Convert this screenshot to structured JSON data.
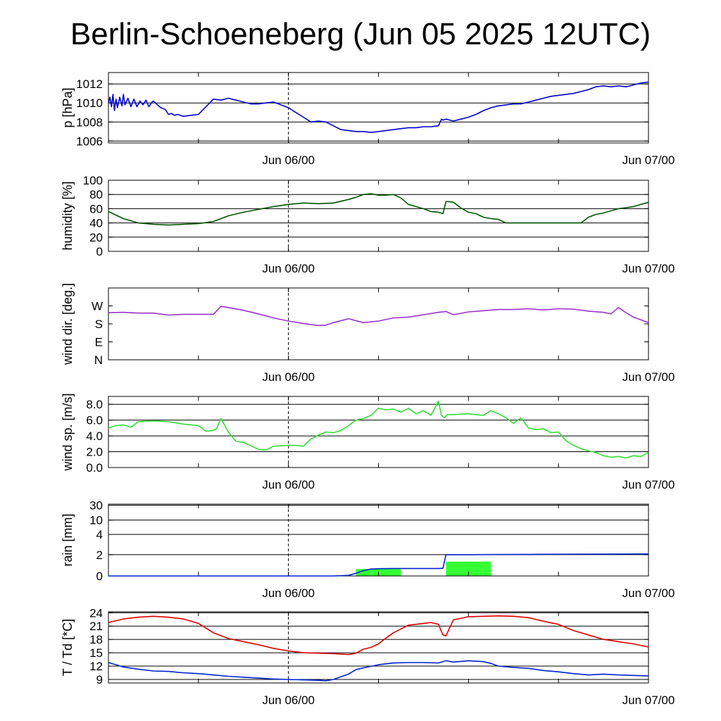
{
  "title": "Berlin-Schoeneberg (Jun 05 2025 12UTC)",
  "x_axis": {
    "range_hours": [
      0,
      36
    ],
    "marker_hour": 12,
    "major_tick_every_hours": 6,
    "tick_labels": [
      {
        "hour": 12,
        "text": "Jun 06/00"
      },
      {
        "hour": 36,
        "text": "Jun 07/00"
      }
    ]
  },
  "colors": {
    "pressure": "#0000cc",
    "humidity": "#005500",
    "wind_dir": "#9933cc",
    "wind_speed": "#33dd33",
    "rain_line": "#0022cc",
    "rain_bar": "#33ff33",
    "temperature": "#dd0000",
    "dewpoint": "#0022cc"
  },
  "chart_data": [
    {
      "type": "line",
      "ylabel": "p [hPa]",
      "ylim": [
        1005.8,
        1013.2
      ],
      "yticks": [
        1006,
        1008,
        1010,
        1012
      ],
      "ytick_labels": [
        "1006",
        "1008",
        "1010",
        "1012"
      ],
      "grid": "horizontal",
      "series": [
        {
          "color_key": "pressure",
          "x": [
            0,
            0.1,
            0.2,
            0.3,
            0.4,
            0.5,
            0.6,
            0.75,
            0.9,
            1.0,
            1.1,
            1.3,
            1.5,
            1.7,
            1.9,
            2.1,
            2.3,
            2.5,
            2.7,
            2.9,
            3.0,
            3.2,
            3.5,
            3.8,
            4.0,
            4.2,
            4.4,
            4.6,
            5.0,
            5.5,
            6.0,
            6.5,
            7.0,
            7.5,
            8.0,
            8.5,
            9.0,
            9.5,
            10.0,
            10.5,
            11.0,
            11.5,
            12.0,
            12.5,
            13.0,
            13.5,
            14.0,
            14.5,
            15.0,
            15.5,
            16.0,
            16.5,
            17.0,
            17.5,
            18.0,
            18.5,
            19.0,
            19.5,
            20.0,
            20.5,
            21.0,
            21.5,
            22.0,
            22.2,
            22.3,
            22.5,
            23.0,
            23.5,
            24.0,
            24.5,
            25.0,
            25.5,
            26.0,
            26.5,
            27.0,
            27.5,
            28.0,
            28.5,
            29.0,
            29.5,
            30.0,
            30.5,
            31.0,
            31.5,
            32.0,
            32.5,
            33.0,
            33.5,
            34.0,
            34.5,
            35.0,
            35.5,
            36.0
          ],
          "y": [
            1010.0,
            1010.6,
            1009.6,
            1010.9,
            1009.2,
            1010.4,
            1009.5,
            1010.6,
            1009.7,
            1010.9,
            1009.8,
            1010.5,
            1009.6,
            1010.4,
            1009.6,
            1010.2,
            1009.8,
            1010.3,
            1009.6,
            1010.1,
            1010.2,
            1009.9,
            1009.5,
            1009.3,
            1008.8,
            1008.9,
            1008.7,
            1008.8,
            1008.6,
            1008.7,
            1008.8,
            1009.6,
            1010.4,
            1010.3,
            1010.5,
            1010.3,
            1010.1,
            1009.9,
            1009.9,
            1010.0,
            1010.1,
            1009.8,
            1009.5,
            1009.0,
            1008.5,
            1008.0,
            1008.1,
            1008.0,
            1007.6,
            1007.2,
            1007.1,
            1007.0,
            1007.0,
            1006.9,
            1007.0,
            1007.1,
            1007.2,
            1007.3,
            1007.4,
            1007.4,
            1007.5,
            1007.5,
            1007.6,
            1008.3,
            1008.2,
            1008.3,
            1008.1,
            1008.3,
            1008.5,
            1008.8,
            1009.2,
            1009.5,
            1009.7,
            1009.8,
            1009.9,
            1009.9,
            1010.1,
            1010.3,
            1010.5,
            1010.7,
            1010.8,
            1010.9,
            1011.0,
            1011.2,
            1011.4,
            1011.7,
            1011.8,
            1011.7,
            1011.8,
            1011.7,
            1011.9,
            1012.1,
            1012.2
          ]
        }
      ]
    },
    {
      "type": "line",
      "ylabel": "humidity [%]",
      "ylim": [
        0,
        100
      ],
      "yticks": [
        0,
        20,
        40,
        60,
        80,
        100
      ],
      "ytick_labels": [
        "0",
        "20",
        "40",
        "60",
        "80",
        "100"
      ],
      "grid": "horizontal",
      "series": [
        {
          "color_key": "humidity",
          "x": [
            0,
            1,
            2,
            3,
            4,
            5,
            6,
            7,
            8,
            9,
            10,
            11,
            12,
            13,
            14,
            15,
            16,
            16.5,
            17,
            17.5,
            18,
            18.5,
            19,
            19.5,
            20,
            20.5,
            21,
            21.5,
            22,
            22.3,
            22.5,
            22.7,
            23,
            23.5,
            24,
            24.5,
            25,
            25.5,
            26,
            26.5,
            27,
            27.5,
            28,
            28.5,
            29,
            29.5,
            30,
            30.5,
            31,
            31.5,
            32,
            32.5,
            33,
            33.5,
            34,
            35,
            36
          ],
          "y": [
            56,
            46,
            40,
            38,
            37,
            38,
            39,
            42,
            50,
            55,
            59,
            63,
            66,
            68,
            67,
            68,
            73,
            76,
            80,
            81,
            79,
            79,
            80,
            75,
            66,
            63,
            60,
            56,
            55,
            53,
            70,
            70,
            69,
            61,
            55,
            53,
            48,
            46,
            45,
            40,
            40,
            40,
            40,
            40,
            40,
            40,
            40,
            40,
            40,
            40,
            48,
            52,
            54,
            57,
            60,
            63,
            69
          ]
        }
      ]
    },
    {
      "type": "line",
      "ylabel": "wind dir. [deg.]",
      "ylim": [
        0,
        360
      ],
      "yticks": [
        0,
        90,
        180,
        270
      ],
      "ytick_labels": [
        "N",
        "E",
        "S",
        "W"
      ],
      "grid": "none",
      "series": [
        {
          "color_key": "wind_dir",
          "x": [
            0,
            1,
            2,
            3,
            4,
            5,
            6,
            7,
            7.5,
            8,
            9,
            10,
            11,
            12,
            13,
            14,
            14.5,
            15,
            16,
            17,
            18,
            19,
            20,
            21,
            22,
            22.5,
            23,
            24,
            25,
            26,
            27,
            28,
            29,
            30,
            31,
            32,
            33,
            33.5,
            34,
            34.5,
            35,
            35.5,
            36
          ],
          "y": [
            236,
            238,
            234,
            234,
            224,
            228,
            228,
            228,
            268,
            262,
            248,
            230,
            210,
            194,
            182,
            172,
            174,
            186,
            206,
            186,
            194,
            210,
            214,
            226,
            238,
            242,
            226,
            240,
            246,
            252,
            252,
            256,
            250,
            256,
            254,
            244,
            238,
            230,
            262,
            236,
            214,
            200,
            186
          ]
        }
      ]
    },
    {
      "type": "line",
      "ylabel": "wind sp. [m/s]",
      "ylim": [
        0,
        9
      ],
      "yticks": [
        0,
        2,
        4,
        6,
        8
      ],
      "ytick_labels": [
        "0.0",
        "2.0",
        "4.0",
        "6.0",
        "8.0"
      ],
      "grid": "horizontal",
      "series": [
        {
          "color_key": "wind_speed",
          "x": [
            0,
            0.5,
            1,
            1.5,
            2,
            3,
            4,
            5,
            6,
            6.5,
            7,
            7.2,
            7.5,
            8,
            8.5,
            9,
            10,
            10.5,
            11,
            12,
            12.5,
            13,
            13.5,
            14,
            14.5,
            15,
            15.5,
            16,
            16.5,
            17,
            17.5,
            18,
            18.5,
            19,
            19.5,
            20,
            20.5,
            21,
            21.5,
            22,
            22.2,
            22.4,
            22.6,
            23,
            24,
            25,
            25.5,
            26,
            26.5,
            27,
            27.5,
            28,
            28.5,
            29,
            29.5,
            30,
            30.5,
            31,
            31.5,
            32,
            32.5,
            33,
            33.5,
            34,
            34.5,
            35,
            35.5,
            36
          ],
          "y": [
            5.0,
            5.3,
            5.4,
            5.1,
            5.8,
            5.9,
            5.8,
            5.5,
            5.3,
            4.6,
            4.7,
            4.9,
            6.2,
            4.5,
            3.3,
            3.2,
            2.3,
            2.2,
            2.7,
            2.8,
            2.8,
            2.7,
            3.6,
            4.1,
            4.5,
            4.4,
            4.7,
            5.3,
            6.0,
            6.2,
            6.6,
            7.5,
            7.3,
            7.4,
            7.0,
            7.5,
            6.8,
            7.2,
            6.6,
            8.4,
            6.6,
            6.3,
            6.7,
            6.7,
            6.8,
            6.6,
            7.2,
            6.8,
            6.3,
            5.6,
            6.3,
            5.0,
            4.8,
            4.9,
            4.4,
            4.5,
            3.4,
            2.8,
            2.4,
            2.1,
            1.9,
            1.5,
            1.3,
            1.4,
            1.2,
            1.5,
            1.4,
            1.9
          ]
        }
      ]
    },
    {
      "type": "area",
      "ylabel": "rain [mm]",
      "ylim": [
        0,
        30
      ],
      "scale": "nonlinear",
      "yticks": [
        0,
        2,
        4,
        10,
        30
      ],
      "ytick_labels": [
        "0",
        "2",
        "4",
        "10",
        "30"
      ],
      "grid": "horizontal",
      "bars": [
        {
          "start": 16.5,
          "end": 19.5,
          "value": 0.65
        },
        {
          "start": 22.5,
          "end": 25.5,
          "value": 1.35
        }
      ],
      "series": [
        {
          "name": "accumulated",
          "color_key": "rain_line",
          "x": [
            0,
            15,
            16,
            16.5,
            17,
            17.5,
            18,
            19,
            20,
            21,
            22,
            22.3,
            22.5,
            23,
            24,
            26,
            28,
            30,
            32,
            34,
            36
          ],
          "y": [
            0,
            0,
            0.05,
            0.25,
            0.5,
            0.65,
            0.68,
            0.7,
            0.7,
            0.7,
            0.7,
            0.72,
            2.0,
            2.0,
            2.0,
            2.02,
            2.03,
            2.04,
            2.05,
            2.06,
            2.07
          ]
        }
      ]
    },
    {
      "type": "line",
      "ylabel": "T / Td [*C]",
      "ylim": [
        8.2,
        24.2
      ],
      "yticks": [
        9,
        12,
        15,
        18,
        21,
        24
      ],
      "ytick_labels": [
        "9",
        "12",
        "15",
        "18",
        "21",
        "24"
      ],
      "grid": "horizontal",
      "series": [
        {
          "name": "T",
          "color_key": "temperature",
          "x": [
            0,
            1,
            2,
            3,
            4,
            5,
            6,
            7,
            8,
            9,
            10,
            11,
            12,
            13,
            14,
            15,
            16,
            16.5,
            17,
            17.5,
            18,
            18.5,
            19,
            20,
            21,
            21.5,
            22,
            22.3,
            22.5,
            22.8,
            23,
            24,
            25,
            26,
            27,
            28,
            29,
            30,
            31,
            32,
            33,
            34,
            35,
            36
          ],
          "y": [
            21.8,
            22.6,
            23.0,
            23.2,
            23.0,
            22.6,
            21.6,
            19.5,
            18.2,
            17.5,
            16.8,
            16.0,
            15.4,
            15.0,
            14.9,
            14.8,
            14.6,
            14.9,
            15.8,
            16.2,
            17.0,
            18.3,
            19.5,
            21.2,
            21.6,
            21.8,
            21.4,
            19.0,
            18.8,
            21.0,
            22.4,
            23.1,
            23.2,
            23.3,
            23.2,
            22.9,
            22.1,
            21.4,
            20.0,
            19.0,
            18.0,
            17.5,
            17.0,
            16.3
          ]
        },
        {
          "name": "Td",
          "color_key": "dewpoint",
          "x": [
            0,
            0.5,
            1,
            2,
            3,
            4,
            5,
            6,
            7,
            8,
            9,
            10,
            11,
            12,
            13,
            14,
            14.5,
            15,
            16,
            16.5,
            17,
            18,
            19,
            20,
            21,
            22,
            22.5,
            23,
            24,
            25,
            25.5,
            26,
            27,
            28,
            29,
            30,
            31,
            32,
            33,
            34,
            35,
            36
          ],
          "y": [
            12.8,
            12.3,
            11.8,
            11.3,
            10.9,
            10.8,
            10.5,
            10.3,
            10.0,
            9.7,
            9.5,
            9.3,
            9.1,
            9.0,
            8.9,
            8.8,
            8.7,
            9.0,
            10.2,
            11.2,
            11.6,
            12.3,
            12.7,
            12.8,
            12.8,
            12.7,
            13.2,
            12.9,
            13.2,
            13.0,
            12.6,
            12.0,
            11.7,
            11.5,
            11.0,
            10.7,
            10.3,
            10.0,
            10.2,
            10.0,
            9.9,
            9.8
          ]
        }
      ]
    }
  ]
}
